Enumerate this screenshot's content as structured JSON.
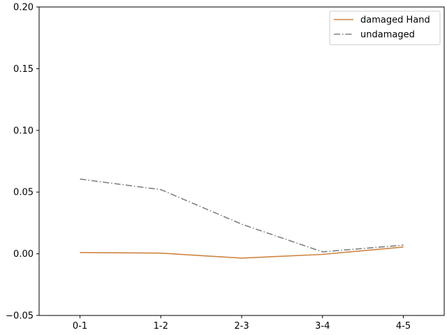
{
  "chart_data": {
    "type": "line",
    "categories": [
      "0-1",
      "1-2",
      "2-3",
      "3-4",
      "4-5"
    ],
    "series": [
      {
        "name": "damaged Hand",
        "values": [
          0.001,
          0.0005,
          -0.0035,
          -0.0005,
          0.0055
        ],
        "color": "#cd853f",
        "linestyle": "solid"
      },
      {
        "name": "undamaged",
        "values": [
          0.0605,
          0.052,
          0.024,
          0.0015,
          0.007
        ],
        "color": "#808080",
        "linestyle": "dashdot"
      }
    ],
    "ylim": [
      -0.05,
      0.2
    ],
    "yticks": [
      "−0.05",
      "0.00",
      "0.05",
      "0.10",
      "0.15",
      "0.20"
    ],
    "title": "",
    "xlabel": "",
    "ylabel": "",
    "grid": false,
    "legend_position": "upper right"
  }
}
